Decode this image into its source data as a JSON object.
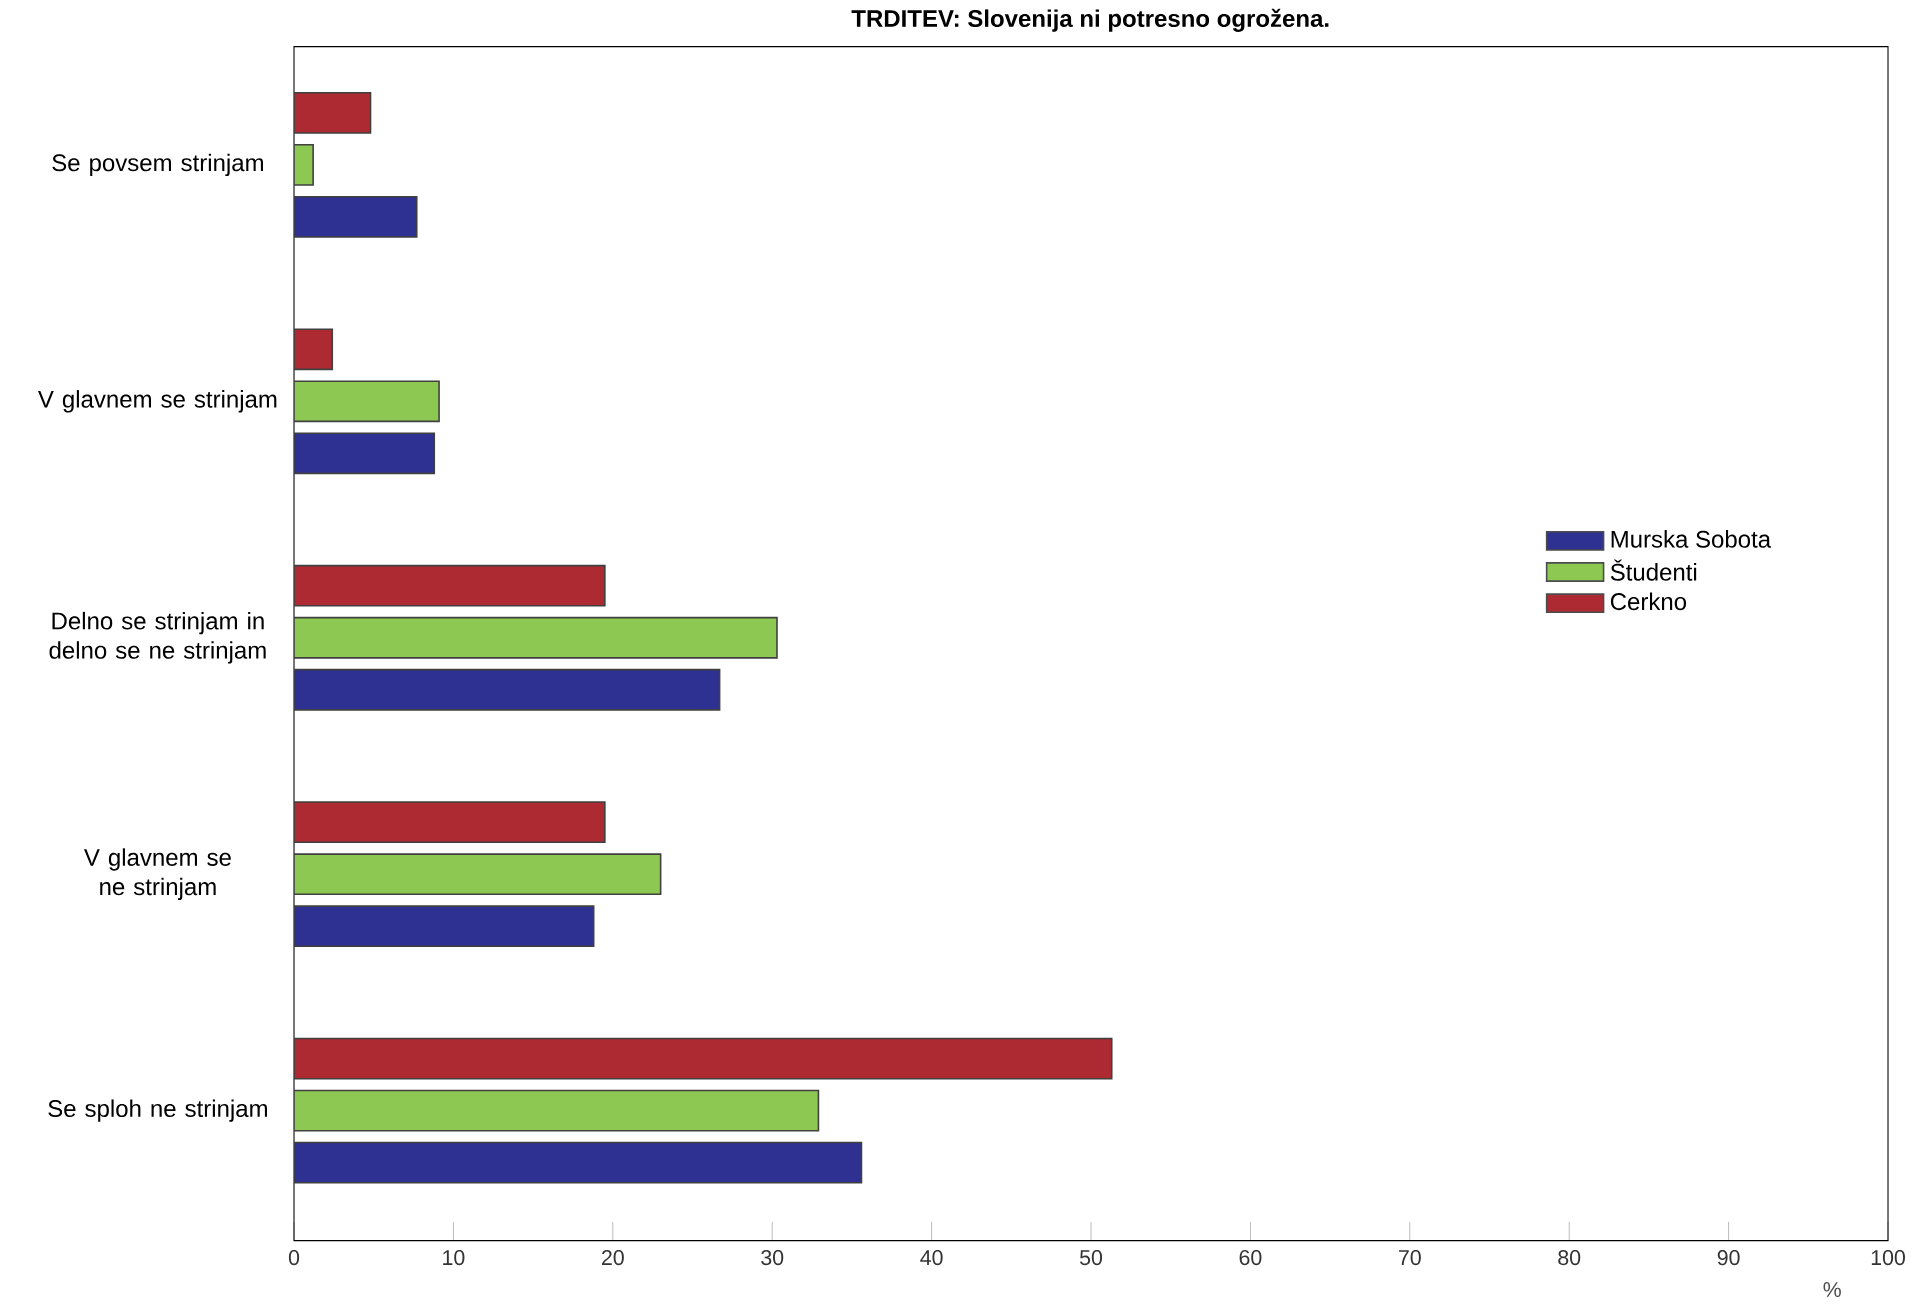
{
  "chart_data": {
    "type": "bar",
    "orientation": "horizontal",
    "title": "TRDITEV: Slovenija ni potresno ogrožena.",
    "xlabel": "%",
    "categories": [
      "Se povsem strinjam",
      "V glavnem se strinjam",
      "Delno se strinjam in delno se ne strinjam",
      "V glavnem se ne strinjam",
      "Se sploh ne strinjam"
    ],
    "series": [
      {
        "name": "Murska Sobota",
        "color": "#2e3192",
        "values": [
          7.7,
          8.8,
          26.7,
          18.8,
          35.6
        ]
      },
      {
        "name": "Študenti",
        "color": "#8dc853",
        "values": [
          1.2,
          9.1,
          30.3,
          23.0,
          32.9
        ]
      },
      {
        "name": "Cerkno",
        "color": "#ad2a33",
        "values": [
          4.8,
          2.4,
          19.5,
          19.5,
          51.3
        ]
      }
    ],
    "xlim": [
      0,
      100
    ],
    "xticks": [
      0,
      10,
      20,
      30,
      40,
      50,
      60,
      70,
      80,
      90,
      100
    ],
    "grid": false,
    "legend": "right"
  }
}
